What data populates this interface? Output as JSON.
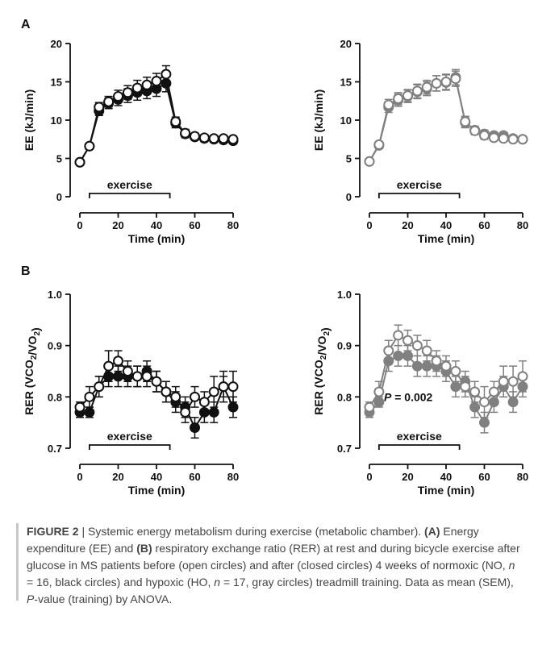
{
  "panel_labels": [
    "A",
    "B"
  ],
  "colors": {
    "black": "#111111",
    "gray": "#808080"
  },
  "chart_data": [
    {
      "id": "A-left",
      "type": "line",
      "title": "",
      "xlabel": "Time (min)",
      "ylabel": "EE (kJ/min)",
      "xlim": [
        0,
        80
      ],
      "ylim": [
        0,
        20
      ],
      "xticks": [
        0,
        20,
        40,
        60,
        80
      ],
      "yticks": [
        0,
        5,
        10,
        15,
        20
      ],
      "annotation": "exercise",
      "exercise_period": [
        5,
        47
      ],
      "color": "#111111",
      "x": [
        0,
        5,
        10,
        15,
        20,
        25,
        30,
        35,
        40,
        45,
        50,
        55,
        60,
        65,
        70,
        75,
        80
      ],
      "series": [
        {
          "marker": "open",
          "values": [
            4.5,
            6.6,
            11.7,
            12.4,
            13.1,
            13.6,
            14.2,
            14.6,
            15.1,
            16.0,
            9.8,
            8.3,
            7.9,
            7.7,
            7.6,
            7.6,
            7.5
          ],
          "errors": [
            0.3,
            0.4,
            0.6,
            0.7,
            0.8,
            0.9,
            1.0,
            1.0,
            1.0,
            1.1,
            0.6,
            0.5,
            0.4,
            0.4,
            0.4,
            0.4,
            0.4
          ]
        },
        {
          "marker": "filled",
          "values": [
            4.5,
            6.6,
            11.2,
            12.2,
            12.7,
            13.2,
            13.6,
            13.8,
            14.1,
            14.8,
            9.6,
            8.2,
            7.8,
            7.6,
            7.5,
            7.4,
            7.3
          ],
          "errors": [
            0.3,
            0.4,
            0.6,
            0.7,
            0.8,
            0.9,
            1.0,
            1.0,
            1.0,
            1.1,
            0.6,
            0.5,
            0.4,
            0.4,
            0.4,
            0.4,
            0.4
          ]
        }
      ]
    },
    {
      "id": "A-right",
      "type": "line",
      "title": "",
      "xlabel": "Time (min)",
      "ylabel": "EE (kJ/min)",
      "xlim": [
        0,
        80
      ],
      "ylim": [
        0,
        20
      ],
      "xticks": [
        0,
        20,
        40,
        60,
        80
      ],
      "yticks": [
        0,
        5,
        10,
        15,
        20
      ],
      "annotation": "exercise",
      "exercise_period": [
        5,
        47
      ],
      "color": "#808080",
      "x": [
        0,
        5,
        10,
        15,
        20,
        25,
        30,
        35,
        40,
        45,
        50,
        55,
        60,
        65,
        70,
        75,
        80
      ],
      "series": [
        {
          "marker": "open",
          "values": [
            4.6,
            6.8,
            12.0,
            12.8,
            13.2,
            13.8,
            14.3,
            14.8,
            15.0,
            15.4,
            9.8,
            8.6,
            8.0,
            7.7,
            7.6,
            7.5,
            7.5
          ],
          "errors": [
            0.3,
            0.4,
            0.7,
            0.8,
            0.8,
            0.9,
            0.9,
            1.0,
            1.0,
            1.0,
            0.7,
            0.5,
            0.5,
            0.4,
            0.4,
            0.4,
            0.4
          ]
        },
        {
          "marker": "filled",
          "values": [
            4.6,
            6.7,
            11.7,
            12.6,
            13.1,
            13.7,
            14.1,
            14.8,
            14.9,
            15.6,
            9.7,
            8.7,
            8.2,
            8.0,
            8.0,
            7.6,
            7.5
          ],
          "errors": [
            0.3,
            0.4,
            0.7,
            0.8,
            0.8,
            0.9,
            0.9,
            1.0,
            1.0,
            1.0,
            0.7,
            0.5,
            0.5,
            0.4,
            0.4,
            0.4,
            0.4
          ]
        }
      ]
    },
    {
      "id": "B-left",
      "type": "line",
      "title": "",
      "xlabel": "Time (min)",
      "ylabel": "RER (VCO2/VO2)",
      "xlim": [
        0,
        80
      ],
      "ylim": [
        0.7,
        1.0
      ],
      "xticks": [
        0,
        20,
        40,
        60,
        80
      ],
      "yticks": [
        0.7,
        0.8,
        0.9,
        1.0
      ],
      "annotation": "exercise",
      "exercise_period": [
        5,
        47
      ],
      "color": "#111111",
      "x": [
        0,
        5,
        10,
        15,
        20,
        25,
        30,
        35,
        40,
        45,
        50,
        55,
        60,
        65,
        70,
        75,
        80
      ],
      "series": [
        {
          "marker": "open",
          "values": [
            0.78,
            0.8,
            0.82,
            0.86,
            0.87,
            0.85,
            0.84,
            0.84,
            0.83,
            0.81,
            0.8,
            0.77,
            0.8,
            0.79,
            0.81,
            0.82,
            0.82
          ],
          "errors": [
            0.01,
            0.02,
            0.02,
            0.03,
            0.02,
            0.02,
            0.02,
            0.02,
            0.02,
            0.02,
            0.02,
            0.02,
            0.02,
            0.02,
            0.03,
            0.03,
            0.03
          ]
        },
        {
          "marker": "filled",
          "values": [
            0.77,
            0.77,
            0.82,
            0.84,
            0.84,
            0.84,
            0.84,
            0.85,
            0.83,
            0.81,
            0.79,
            0.78,
            0.74,
            0.77,
            0.77,
            0.82,
            0.78
          ],
          "errors": [
            0.01,
            0.01,
            0.02,
            0.02,
            0.02,
            0.02,
            0.02,
            0.02,
            0.02,
            0.02,
            0.02,
            0.02,
            0.02,
            0.02,
            0.02,
            0.02,
            0.02
          ]
        }
      ]
    },
    {
      "id": "B-right",
      "type": "line",
      "title": "",
      "xlabel": "Time (min)",
      "ylabel": "RER (VCO2/VO2)",
      "xlim": [
        0,
        80
      ],
      "ylim": [
        0.7,
        1.0
      ],
      "xticks": [
        0,
        20,
        40,
        60,
        80
      ],
      "yticks": [
        0.7,
        0.8,
        0.9,
        1.0
      ],
      "annotation": "exercise",
      "exercise_period": [
        5,
        47
      ],
      "stat_label": "P = 0.002",
      "color": "#808080",
      "x": [
        0,
        5,
        10,
        15,
        20,
        25,
        30,
        35,
        40,
        45,
        50,
        55,
        60,
        65,
        70,
        75,
        80
      ],
      "series": [
        {
          "marker": "open",
          "values": [
            0.78,
            0.81,
            0.89,
            0.92,
            0.91,
            0.9,
            0.89,
            0.87,
            0.86,
            0.85,
            0.82,
            0.81,
            0.79,
            0.81,
            0.83,
            0.83,
            0.84
          ],
          "errors": [
            0.01,
            0.02,
            0.02,
            0.02,
            0.02,
            0.02,
            0.02,
            0.02,
            0.02,
            0.02,
            0.02,
            0.02,
            0.03,
            0.02,
            0.03,
            0.03,
            0.03
          ]
        },
        {
          "marker": "filled",
          "values": [
            0.77,
            0.79,
            0.87,
            0.88,
            0.88,
            0.86,
            0.86,
            0.86,
            0.85,
            0.82,
            0.83,
            0.78,
            0.75,
            0.79,
            0.82,
            0.79,
            0.82
          ],
          "errors": [
            0.01,
            0.01,
            0.02,
            0.02,
            0.02,
            0.02,
            0.02,
            0.02,
            0.02,
            0.02,
            0.02,
            0.02,
            0.02,
            0.02,
            0.02,
            0.02,
            0.02
          ]
        }
      ]
    }
  ],
  "caption": {
    "label": "FIGURE 2",
    "separator": " | ",
    "parts": [
      {
        "t": "Systemic energy metabolism during exercise (metabolic chamber). ",
        "s": "n"
      },
      {
        "t": "(A)",
        "s": "b"
      },
      {
        "t": " Energy expenditure (EE) and ",
        "s": "n"
      },
      {
        "t": "(B)",
        "s": "b"
      },
      {
        "t": " respiratory exchange ratio (RER) at rest and during bicycle exercise after glucose in MS patients before (open circles) and after (closed circles) 4 weeks of normoxic (NO, ",
        "s": "n"
      },
      {
        "t": "n",
        "s": "i"
      },
      {
        "t": " = 16, black circles) and hypoxic (HO, ",
        "s": "n"
      },
      {
        "t": "n",
        "s": "i"
      },
      {
        "t": " = 17, gray circles) treadmill training. Data as mean (SEM), ",
        "s": "n"
      },
      {
        "t": "P",
        "s": "i"
      },
      {
        "t": "-value (training) by ANOVA.",
        "s": "n"
      }
    ]
  }
}
